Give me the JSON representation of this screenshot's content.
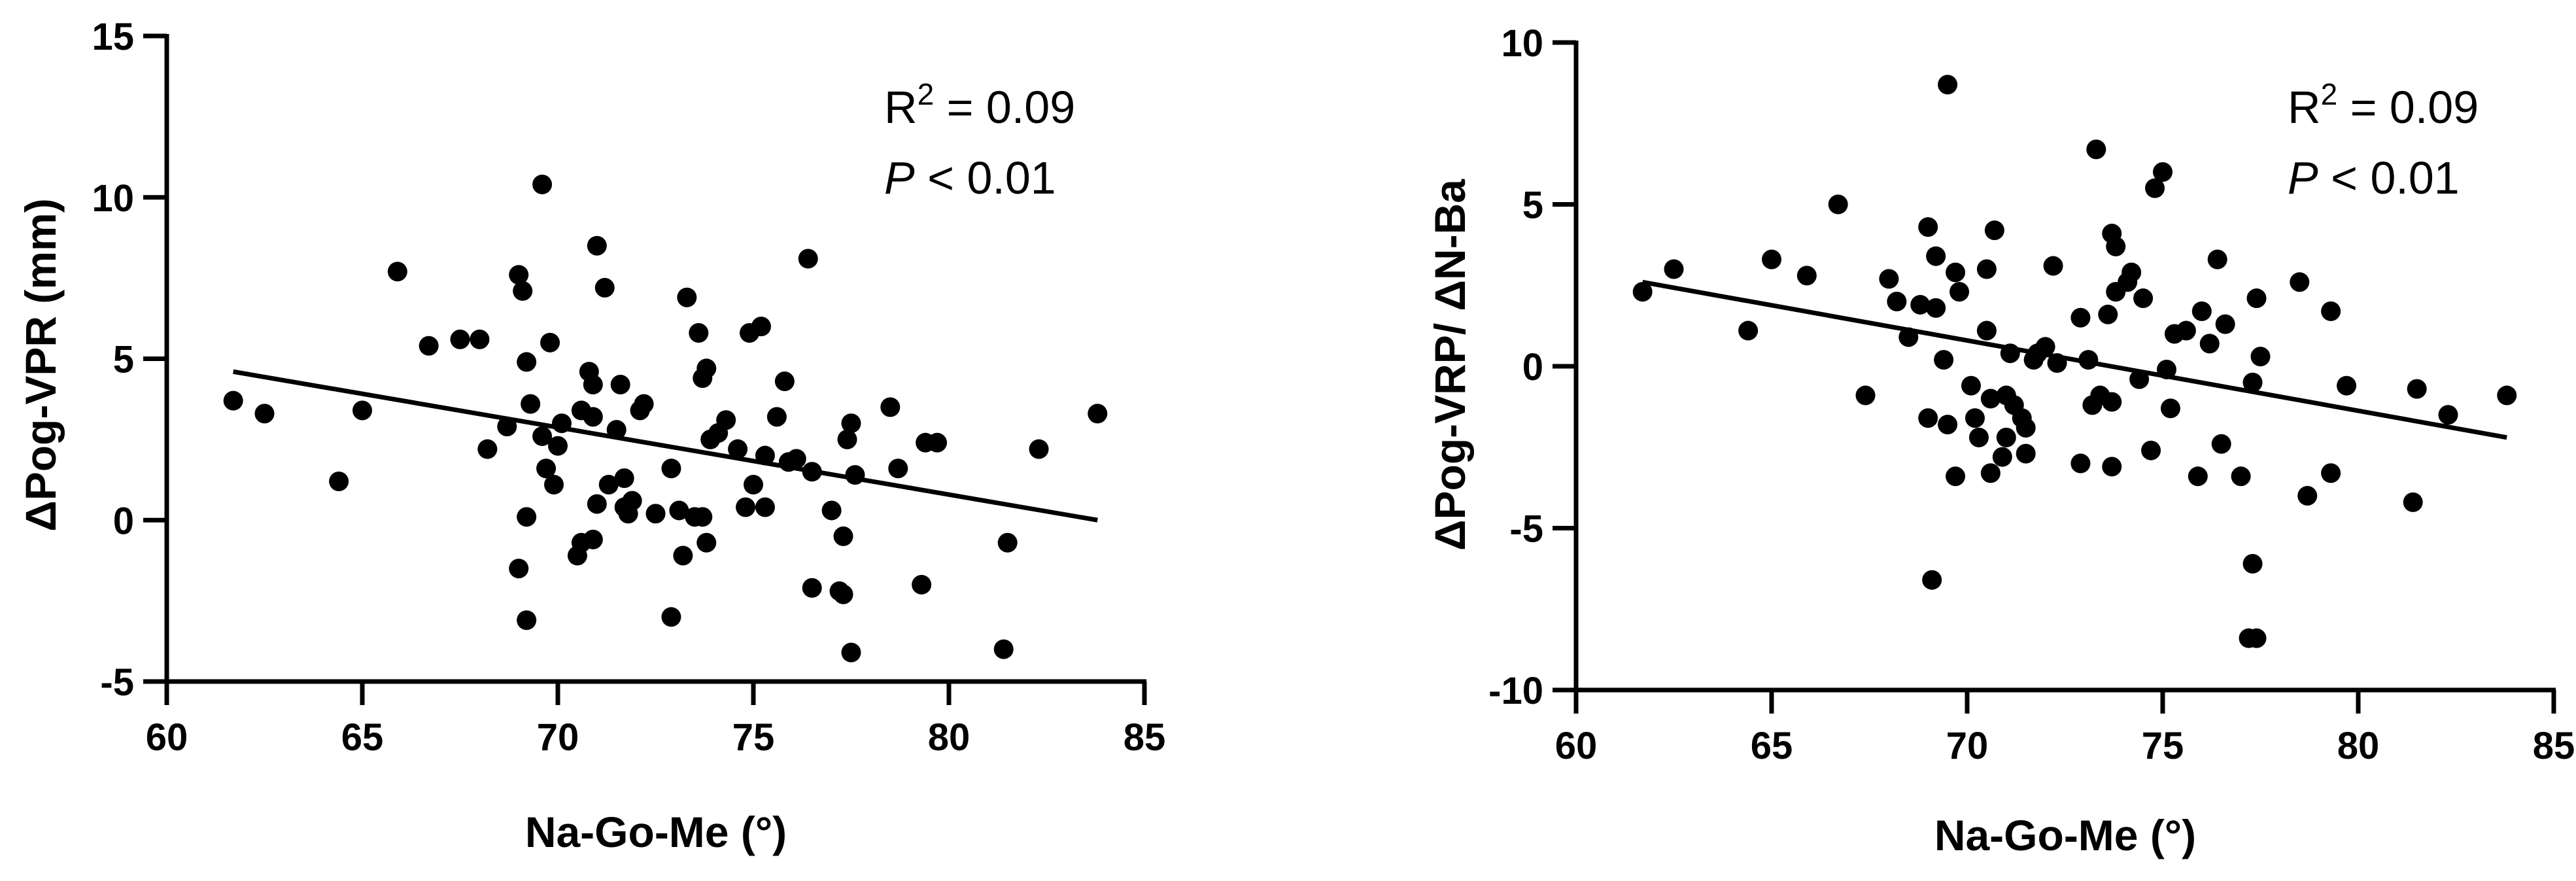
{
  "chart_data": [
    {
      "type": "scatter",
      "xlabel": "Na-Go-Me (°)",
      "ylabel": "ΔPog-VPR (mm)",
      "xlim": [
        60,
        85
      ],
      "ylim": [
        -5,
        15
      ],
      "xticks": [
        60,
        65,
        70,
        75,
        80,
        85
      ],
      "yticks": [
        -5,
        0,
        5,
        10,
        15
      ],
      "xtick_labels": [
        "60",
        "65",
        "70",
        "75",
        "80",
        "85"
      ],
      "ytick_labels": [
        "-5",
        "0",
        "5",
        "10",
        "15"
      ],
      "grid": false,
      "annotation": {
        "r_label": "R",
        "r_sup": "2",
        "r_value": " = 0.09",
        "p_label": "P",
        "p_value": " < 0.01"
      },
      "fit_line": {
        "x": [
          61.7,
          83.8
        ],
        "y": [
          4.6,
          0.0
        ]
      },
      "points": [
        [
          61.7,
          3.7
        ],
        [
          62.5,
          3.3
        ],
        [
          64.4,
          1.2
        ],
        [
          65.0,
          3.4
        ],
        [
          65.9,
          7.7
        ],
        [
          66.7,
          5.4
        ],
        [
          67.5,
          5.6
        ],
        [
          68.0,
          5.6
        ],
        [
          68.2,
          2.2
        ],
        [
          68.7,
          2.9
        ],
        [
          69.0,
          7.6
        ],
        [
          69.1,
          7.1
        ],
        [
          69.2,
          4.9
        ],
        [
          69.3,
          3.6
        ],
        [
          69.2,
          0.1
        ],
        [
          69.0,
          -1.5
        ],
        [
          69.2,
          -3.1
        ],
        [
          69.6,
          10.4
        ],
        [
          69.6,
          2.6
        ],
        [
          69.7,
          1.6
        ],
        [
          69.8,
          5.5
        ],
        [
          69.9,
          1.1
        ],
        [
          70.0,
          2.3
        ],
        [
          70.1,
          3.0
        ],
        [
          70.5,
          -1.1
        ],
        [
          70.6,
          -0.7
        ],
        [
          70.6,
          3.4
        ],
        [
          70.8,
          4.6
        ],
        [
          70.9,
          3.2
        ],
        [
          70.9,
          4.2
        ],
        [
          70.9,
          -0.6
        ],
        [
          71.0,
          0.5
        ],
        [
          71.0,
          8.5
        ],
        [
          71.2,
          7.2
        ],
        [
          71.3,
          1.1
        ],
        [
          71.5,
          2.8
        ],
        [
          71.6,
          4.2
        ],
        [
          71.7,
          1.3
        ],
        [
          71.8,
          0.2
        ],
        [
          71.7,
          0.4
        ],
        [
          71.9,
          0.6
        ],
        [
          72.1,
          3.4
        ],
        [
          72.2,
          3.6
        ],
        [
          72.5,
          0.2
        ],
        [
          72.9,
          1.6
        ],
        [
          72.9,
          -3.0
        ],
        [
          73.1,
          0.3
        ],
        [
          73.2,
          -1.1
        ],
        [
          73.3,
          6.9
        ],
        [
          73.5,
          0.1
        ],
        [
          73.6,
          5.8
        ],
        [
          73.7,
          0.1
        ],
        [
          73.7,
          4.4
        ],
        [
          73.8,
          4.7
        ],
        [
          73.8,
          -0.7
        ],
        [
          73.9,
          2.5
        ],
        [
          74.1,
          2.7
        ],
        [
          74.3,
          3.1
        ],
        [
          74.6,
          2.2
        ],
        [
          74.8,
          0.4
        ],
        [
          74.9,
          5.8
        ],
        [
          75.0,
          1.1
        ],
        [
          75.2,
          6.0
        ],
        [
          75.3,
          0.4
        ],
        [
          75.3,
          2.0
        ],
        [
          75.6,
          3.2
        ],
        [
          75.8,
          4.3
        ],
        [
          75.9,
          1.8
        ],
        [
          76.1,
          1.9
        ],
        [
          76.4,
          8.1
        ],
        [
          76.5,
          -2.1
        ],
        [
          76.5,
          1.5
        ],
        [
          77.0,
          0.3
        ],
        [
          77.2,
          -2.2
        ],
        [
          77.3,
          -0.5
        ],
        [
          77.3,
          -2.3
        ],
        [
          77.4,
          2.5
        ],
        [
          77.5,
          -4.1
        ],
        [
          77.5,
          3.0
        ],
        [
          77.6,
          1.4
        ],
        [
          78.5,
          3.5
        ],
        [
          78.7,
          1.6
        ],
        [
          79.3,
          -2.0
        ],
        [
          79.4,
          2.4
        ],
        [
          79.7,
          2.4
        ],
        [
          81.4,
          -4.0
        ],
        [
          81.5,
          -0.7
        ],
        [
          82.3,
          2.2
        ],
        [
          83.8,
          3.3
        ]
      ]
    },
    {
      "type": "scatter",
      "xlabel": "Na-Go-Me (°)",
      "ylabel": "ΔPog-VRP/ ΔN-Ba",
      "xlim": [
        60,
        85
      ],
      "ylim": [
        -10,
        10
      ],
      "xticks": [
        60,
        65,
        70,
        75,
        80,
        85
      ],
      "yticks": [
        -10,
        -5,
        0,
        5,
        10
      ],
      "xtick_labels": [
        "60",
        "65",
        "70",
        "75",
        "80",
        "85"
      ],
      "ytick_labels": [
        "-10",
        "-5",
        "0",
        "5",
        "10"
      ],
      "grid": false,
      "annotation": {
        "r_label": "R",
        "r_sup": "2",
        "r_value": " = 0.09",
        "p_label": "P",
        "p_value": " < 0.01"
      },
      "fit_line": {
        "x": [
          61.7,
          83.8
        ],
        "y": [
          2.6,
          -2.2
        ]
      },
      "points": [
        [
          61.7,
          2.3
        ],
        [
          62.5,
          3.0
        ],
        [
          64.4,
          1.1
        ],
        [
          65.0,
          3.3
        ],
        [
          65.9,
          2.8
        ],
        [
          66.7,
          5.0
        ],
        [
          67.4,
          -0.9
        ],
        [
          68.0,
          2.7
        ],
        [
          68.2,
          2.0
        ],
        [
          68.5,
          0.9
        ],
        [
          68.8,
          1.9
        ],
        [
          69.0,
          4.3
        ],
        [
          69.0,
          -1.6
        ],
        [
          69.1,
          -6.6
        ],
        [
          69.2,
          3.4
        ],
        [
          69.2,
          1.8
        ],
        [
          69.4,
          0.2
        ],
        [
          69.5,
          8.7
        ],
        [
          69.5,
          -1.8
        ],
        [
          69.7,
          2.9
        ],
        [
          69.8,
          2.3
        ],
        [
          69.7,
          -3.4
        ],
        [
          70.1,
          -0.6
        ],
        [
          70.2,
          -1.6
        ],
        [
          70.3,
          -2.2
        ],
        [
          70.5,
          1.1
        ],
        [
          70.5,
          3.0
        ],
        [
          70.6,
          -3.3
        ],
        [
          70.6,
          -1.0
        ],
        [
          70.7,
          4.2
        ],
        [
          70.9,
          -2.8
        ],
        [
          71.0,
          -0.9
        ],
        [
          71.0,
          -2.2
        ],
        [
          71.1,
          0.4
        ],
        [
          71.2,
          -1.2
        ],
        [
          71.4,
          -1.6
        ],
        [
          71.5,
          -1.9
        ],
        [
          71.5,
          -2.7
        ],
        [
          71.7,
          0.2
        ],
        [
          71.8,
          0.4
        ],
        [
          72.0,
          0.6
        ],
        [
          72.2,
          3.1
        ],
        [
          72.3,
          0.1
        ],
        [
          72.9,
          1.5
        ],
        [
          72.9,
          -3.0
        ],
        [
          73.1,
          0.2
        ],
        [
          73.2,
          -1.2
        ],
        [
          73.3,
          6.7
        ],
        [
          73.4,
          -0.9
        ],
        [
          73.6,
          1.6
        ],
        [
          73.7,
          4.1
        ],
        [
          73.7,
          -1.1
        ],
        [
          73.7,
          -3.1
        ],
        [
          73.8,
          3.7
        ],
        [
          73.8,
          2.3
        ],
        [
          74.1,
          2.6
        ],
        [
          74.2,
          2.9
        ],
        [
          74.4,
          -0.4
        ],
        [
          74.5,
          2.1
        ],
        [
          74.7,
          -2.6
        ],
        [
          74.8,
          5.5
        ],
        [
          75.0,
          6.0
        ],
        [
          75.1,
          -0.1
        ],
        [
          75.2,
          -1.3
        ],
        [
          75.3,
          1.0
        ],
        [
          75.6,
          1.1
        ],
        [
          75.9,
          -3.4
        ],
        [
          76.0,
          1.7
        ],
        [
          76.2,
          0.7
        ],
        [
          76.4,
          3.3
        ],
        [
          76.5,
          -2.4
        ],
        [
          76.6,
          1.3
        ],
        [
          77.0,
          -3.4
        ],
        [
          77.3,
          -0.5
        ],
        [
          77.3,
          -6.1
        ],
        [
          77.2,
          -8.4
        ],
        [
          77.4,
          -8.4
        ],
        [
          77.4,
          2.1
        ],
        [
          77.5,
          0.3
        ],
        [
          78.5,
          2.6
        ],
        [
          78.7,
          -4.0
        ],
        [
          79.3,
          -3.3
        ],
        [
          79.3,
          1.7
        ],
        [
          79.7,
          -0.6
        ],
        [
          81.4,
          -4.2
        ],
        [
          81.5,
          -0.7
        ],
        [
          82.3,
          -1.5
        ],
        [
          83.8,
          -0.9
        ]
      ]
    }
  ]
}
